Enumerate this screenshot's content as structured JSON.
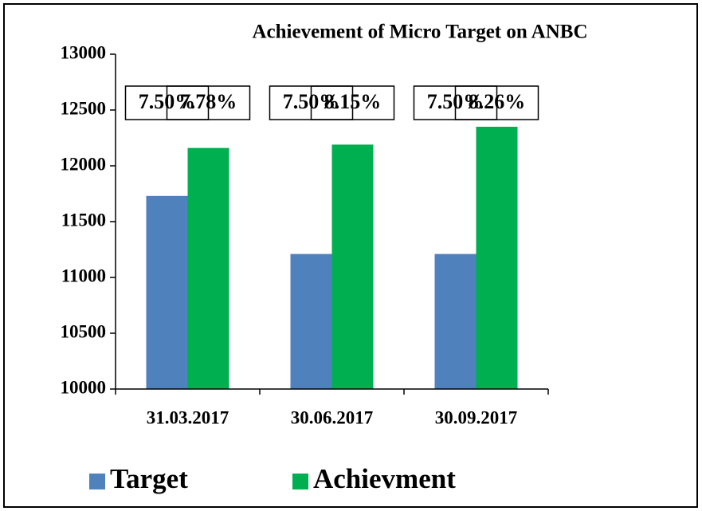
{
  "chart_data": {
    "type": "bar",
    "title": "Achievement of Micro Target on ANBC",
    "categories": [
      "31.03.2017",
      "30.06.2017",
      "30.09.2017"
    ],
    "series": [
      {
        "name": "Target",
        "color": "#4f81bd",
        "values": [
          11730,
          11210,
          11210
        ],
        "annotations": [
          "7.50%",
          "7.50%",
          "7.50%"
        ]
      },
      {
        "name": "Achievment",
        "color": "#00b050",
        "values": [
          12160,
          12190,
          12350
        ],
        "annotations": [
          "7.78%",
          "8.15%",
          "8.26%"
        ]
      }
    ],
    "ylim": [
      10000,
      13000
    ],
    "yticks": [
      10000,
      10500,
      11000,
      11500,
      12000,
      12500,
      13000
    ],
    "grid": false,
    "legend": "bottom"
  }
}
